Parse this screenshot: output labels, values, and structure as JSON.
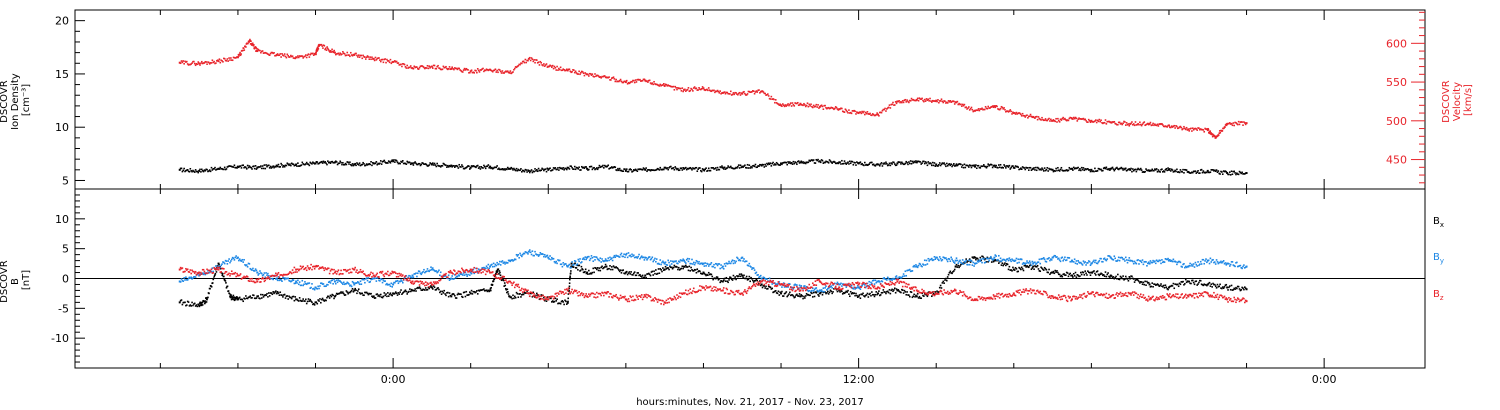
{
  "chart_data": [
    {
      "type": "scatter",
      "ylabel_lines": [
        "DSCOVR",
        "Ion Density",
        "[cm⁻³]"
      ],
      "y2label_lines": [
        "DSCOVR",
        "Velocity",
        "[km/s]"
      ],
      "ylim": [
        4.2,
        21
      ],
      "yticks": [
        5,
        10,
        15,
        20
      ],
      "y2lim": [
        412,
        643
      ],
      "y2ticks": [
        450,
        500,
        550,
        600
      ],
      "series": [
        {
          "name": "",
          "axis": "left",
          "color": "#000000",
          "x": [
            -5.5,
            -5,
            -4.5,
            -4,
            -3.5,
            -3,
            -2.5,
            -2,
            -1.5,
            -1,
            -0.5,
            0,
            0.5,
            1,
            1.5,
            2,
            2.5,
            3,
            3.5,
            4,
            4.5,
            5,
            5.5,
            6,
            6.5,
            7,
            7.5,
            8,
            8.5,
            9,
            9.5,
            10,
            10.5,
            11,
            11.5,
            12,
            12.5,
            13,
            13.5,
            14,
            14.5,
            15,
            15.5,
            16,
            16.5,
            17,
            17.5,
            18,
            18.5,
            19,
            19.5,
            20,
            20.5,
            21,
            21.5,
            22
          ],
          "y": [
            6.0,
            5.9,
            6.1,
            6.3,
            6.2,
            6.4,
            6.5,
            6.6,
            6.7,
            6.5,
            6.6,
            6.8,
            6.6,
            6.5,
            6.4,
            6.2,
            6.3,
            6.1,
            5.9,
            6.0,
            6.2,
            6.1,
            6.3,
            5.9,
            6.0,
            6.2,
            6.1,
            6.0,
            6.2,
            6.3,
            6.4,
            6.6,
            6.7,
            6.8,
            6.7,
            6.6,
            6.5,
            6.6,
            6.7,
            6.5,
            6.4,
            6.3,
            6.4,
            6.2,
            6.1,
            6.0,
            6.1,
            6.0,
            6.1,
            6.0,
            5.9,
            6.0,
            5.8,
            5.9,
            5.7,
            5.7
          ]
        },
        {
          "name": "",
          "axis": "right",
          "color": "#e8242b",
          "x": [
            -5.5,
            -5,
            -4.5,
            -4,
            -3.7,
            -3.5,
            -3,
            -2.5,
            -2,
            -1.9,
            -1.5,
            -1,
            -0.5,
            0,
            0.5,
            1,
            1.5,
            2,
            2.5,
            3,
            3.5,
            4,
            4.5,
            5,
            5.5,
            6,
            6.5,
            7,
            7.5,
            8,
            8.5,
            9,
            9.5,
            10,
            10.5,
            11,
            11.5,
            12,
            12.5,
            13,
            13.5,
            14,
            14.5,
            15,
            15.5,
            16,
            16.5,
            17,
            17.5,
            18,
            18.5,
            19,
            19.5,
            20,
            20.5,
            21,
            21.2,
            21.5,
            22
          ],
          "y": [
            575,
            574,
            577,
            582,
            603,
            590,
            585,
            582,
            586,
            598,
            588,
            585,
            580,
            576,
            568,
            570,
            567,
            564,
            566,
            562,
            580,
            570,
            565,
            560,
            556,
            550,
            552,
            545,
            540,
            542,
            536,
            535,
            538,
            520,
            522,
            518,
            515,
            510,
            508,
            525,
            527,
            526,
            524,
            513,
            519,
            510,
            505,
            500,
            503,
            500,
            498,
            496,
            496,
            494,
            489,
            488,
            478,
            496,
            497
          ]
        }
      ]
    },
    {
      "type": "scatter",
      "ylabel_lines": [
        "DSCOVR",
        "B",
        "[nT]"
      ],
      "ylim": [
        -15,
        15
      ],
      "yticks": [
        -10,
        -5,
        0,
        5,
        10
      ],
      "zero_line": true,
      "series": [
        {
          "name": "Bx",
          "label_text": "B",
          "label_sub": "x",
          "color": "#000000",
          "x": [
            -5.5,
            -5,
            -4.8,
            -4.5,
            -4.2,
            -4,
            -3.5,
            -3,
            -2.5,
            -2,
            -1.5,
            -1,
            -0.5,
            0,
            0.5,
            1,
            1.5,
            2,
            2.5,
            2.7,
            3,
            3.5,
            4,
            4.5,
            4.6,
            5,
            5.5,
            6,
            6.5,
            7,
            7.5,
            8,
            8.5,
            9,
            9.5,
            10,
            10.5,
            11,
            11.5,
            12,
            12.5,
            13,
            13.5,
            14,
            14.5,
            15,
            15.5,
            16,
            16.5,
            17,
            17.5,
            18,
            18.5,
            19,
            19.5,
            20,
            20.5,
            21,
            21.5,
            22
          ],
          "y": [
            -4.0,
            -4.5,
            -3.5,
            2.5,
            -3.0,
            -3.5,
            -3.0,
            -2.5,
            -3.5,
            -4.0,
            -3.0,
            -2.0,
            -3.0,
            -2.5,
            -2.0,
            -1.5,
            -3.0,
            -2.5,
            -2.0,
            1.5,
            -3.0,
            -2.5,
            -3.5,
            -4.0,
            2.5,
            1.0,
            2.0,
            1.0,
            0.5,
            1.5,
            2.0,
            1.0,
            -0.5,
            0.5,
            -1.0,
            -2.5,
            -3.0,
            -2.5,
            -2.0,
            -3.0,
            -2.5,
            -2.0,
            -3.0,
            -2.5,
            2.0,
            3.5,
            3.0,
            1.5,
            2.0,
            1.0,
            0.5,
            1.0,
            0.5,
            0.0,
            -1.0,
            -1.5,
            -0.5,
            -1.0,
            -1.5,
            -1.8
          ]
        },
        {
          "name": "By",
          "label_text": "B",
          "label_sub": "y",
          "color": "#1e88e5",
          "x": [
            -5.5,
            -5,
            -4.5,
            -4,
            -3.5,
            -3,
            -2.5,
            -2,
            -1.5,
            -1,
            -0.5,
            0,
            0.5,
            1,
            1.5,
            2,
            2.5,
            3,
            3.5,
            4,
            4.5,
            5,
            5.5,
            6,
            6.5,
            7,
            7.5,
            8,
            8.5,
            9,
            9.5,
            10,
            10.5,
            11,
            11.5,
            12,
            12.5,
            13,
            13.5,
            14,
            14.5,
            15,
            15.5,
            16,
            16.5,
            17,
            17.5,
            18,
            18.5,
            19,
            19.5,
            20,
            20.5,
            21,
            21.5,
            22
          ],
          "y": [
            -0.5,
            0.5,
            2.0,
            3.5,
            1.0,
            0.0,
            -0.5,
            -1.5,
            -0.5,
            -1.0,
            0.0,
            -1.0,
            0.5,
            1.5,
            0.0,
            1.0,
            2.0,
            3.0,
            4.5,
            3.5,
            2.0,
            3.5,
            3.0,
            4.0,
            3.5,
            2.5,
            3.0,
            2.5,
            2.0,
            3.5,
            0.0,
            -1.0,
            -1.5,
            -2.0,
            -1.0,
            -1.5,
            -0.5,
            0.0,
            2.0,
            3.5,
            3.0,
            2.5,
            3.5,
            3.0,
            2.5,
            3.5,
            3.0,
            2.5,
            3.5,
            3.0,
            2.5,
            3.0,
            2.0,
            3.0,
            2.5,
            2.0
          ]
        },
        {
          "name": "Bz",
          "label_text": "B",
          "label_sub": "z",
          "color": "#e8242b",
          "x": [
            -5.5,
            -5,
            -4.5,
            -4,
            -3.5,
            -3,
            -2.5,
            -2,
            -1.5,
            -1,
            -0.5,
            0,
            0.5,
            1,
            1.5,
            2,
            2.5,
            3,
            3.5,
            4,
            4.5,
            5,
            5.5,
            6,
            6.5,
            7,
            7.5,
            8,
            8.5,
            9,
            9.5,
            10,
            10.5,
            11,
            11.5,
            12,
            12.5,
            13,
            13.5,
            14,
            14.5,
            15,
            15.5,
            16,
            16.5,
            17,
            17.5,
            18,
            18.5,
            19,
            19.5,
            20,
            20.5,
            21,
            21.5,
            22
          ],
          "y": [
            1.5,
            1.0,
            1.5,
            0.5,
            -0.5,
            0.5,
            1.5,
            2.0,
            1.0,
            1.5,
            0.5,
            1.0,
            -0.5,
            -1.0,
            1.0,
            1.5,
            1.0,
            -0.5,
            -2.5,
            -3.5,
            -2.0,
            -3.0,
            -2.5,
            -3.5,
            -3.0,
            -4.0,
            -2.5,
            -1.5,
            -2.0,
            -2.5,
            -0.5,
            -1.0,
            -2.0,
            -0.5,
            -1.5,
            -1.0,
            -1.5,
            -0.5,
            -2.0,
            -2.5,
            -2.0,
            -3.5,
            -3.0,
            -2.5,
            -2.0,
            -3.0,
            -3.5,
            -2.5,
            -3.0,
            -2.5,
            -3.5,
            -3.0,
            -3.0,
            -2.5,
            -3.5,
            -3.8
          ]
        }
      ]
    }
  ],
  "x_axis": {
    "xlim": [
      -8.2,
      26.6
    ],
    "major_ticks": [
      0,
      12,
      24
    ],
    "tick_labels": [
      "0:00",
      "12:00",
      "0:00"
    ],
    "minor_ticks": [
      -6,
      -4,
      -2,
      2,
      4,
      6,
      8,
      10,
      14,
      16,
      18,
      20,
      22
    ],
    "title": "hours:minutes, Nov. 21, 2017 - Nov. 23, 2017"
  },
  "colors": {
    "black": "#000000",
    "red": "#e8242b",
    "blue": "#1e88e5"
  }
}
